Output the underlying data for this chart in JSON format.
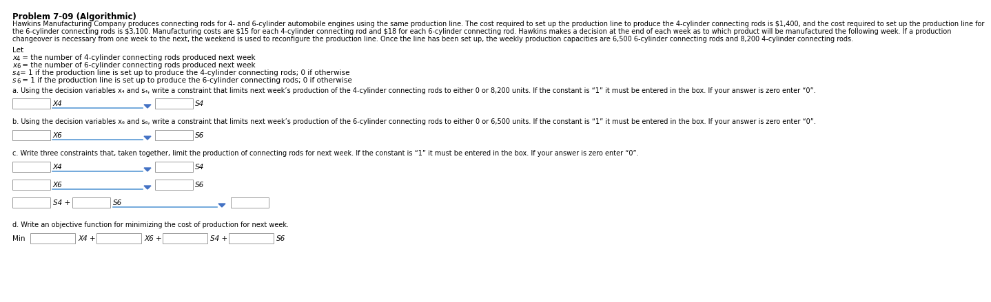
{
  "title": "Problem 7-09 (Algorithmic)",
  "bg_color": "#ffffff",
  "text_color": "#000000",
  "para_line1": "Hawkins Manufacturing Company produces connecting rods for 4- and 6-cylinder automobile engines using the same production line. The cost required to set up the production line to produce the 4-cylinder connecting rods is $1,400, and the cost required to set up the production line for",
  "para_line2": "the 6-cylinder connecting rods is $3,100. Manufacturing costs are $15 for each 4-cylinder connecting rod and $18 for each 6-cylinder connecting rod. Hawkins makes a decision at the end of each week as to which product will be manufactured the following week. If a production",
  "para_line3": "changeover is necessary from one week to the next, the weekend is used to reconfigure the production line. Once the line has been set up, the weekly production capacities are 6,500 6-cylinder connecting rods and 8,200 4-cylinder connecting rods.",
  "let_label": "Let",
  "let_line1": "x4 = the number of 4-cylinder connecting rods produced next week",
  "let_line2": "x6 = the number of 6-cylinder connecting rods produced next week",
  "let_line3": "s4= 1 if the production line is set up to produce the 4-cylinder connecting rods; 0 if otherwise",
  "let_line4": "s6 = 1 if the production line is set up to produce the 6-cylinder connecting rods; 0 if otherwise",
  "let_line1_sub": [
    "x",
    "4"
  ],
  "let_line2_sub": [
    "x",
    "6"
  ],
  "let_line3_sub": [
    "s",
    "4"
  ],
  "let_line4_sub": [
    "s",
    "6"
  ],
  "section_a": "a. Using the decision variables x₄ and s₄, write a constraint that limits next week’s production of the 4-cylinder connecting rods to either 0 or 8,200 units. If the constant is “1” it must be entered in the box. If your answer is zero enter “0”.",
  "section_b": "b. Using the decision variables x₆ and s₆, write a constraint that limits next week’s production of the 6-cylinder connecting rods to either 0 or 6,500 units. If the constant is “1” it must be entered in the box. If your answer is zero enter “0”.",
  "section_c": "c. Write three constraints that, taken together, limit the production of connecting rods for next week. If the constant is “1” it must be entered in the box. If your answer is zero enter “0”.",
  "section_d": "d. Write an objective function for minimizing the cost of production for next week.",
  "box_color": "#ffffff",
  "box_edge": "#999999",
  "line_color": "#5b9bd5",
  "dropdown_color": "#4472c4",
  "font_size_title": 8.5,
  "font_size_body": 7.5,
  "font_size_small": 7.0
}
